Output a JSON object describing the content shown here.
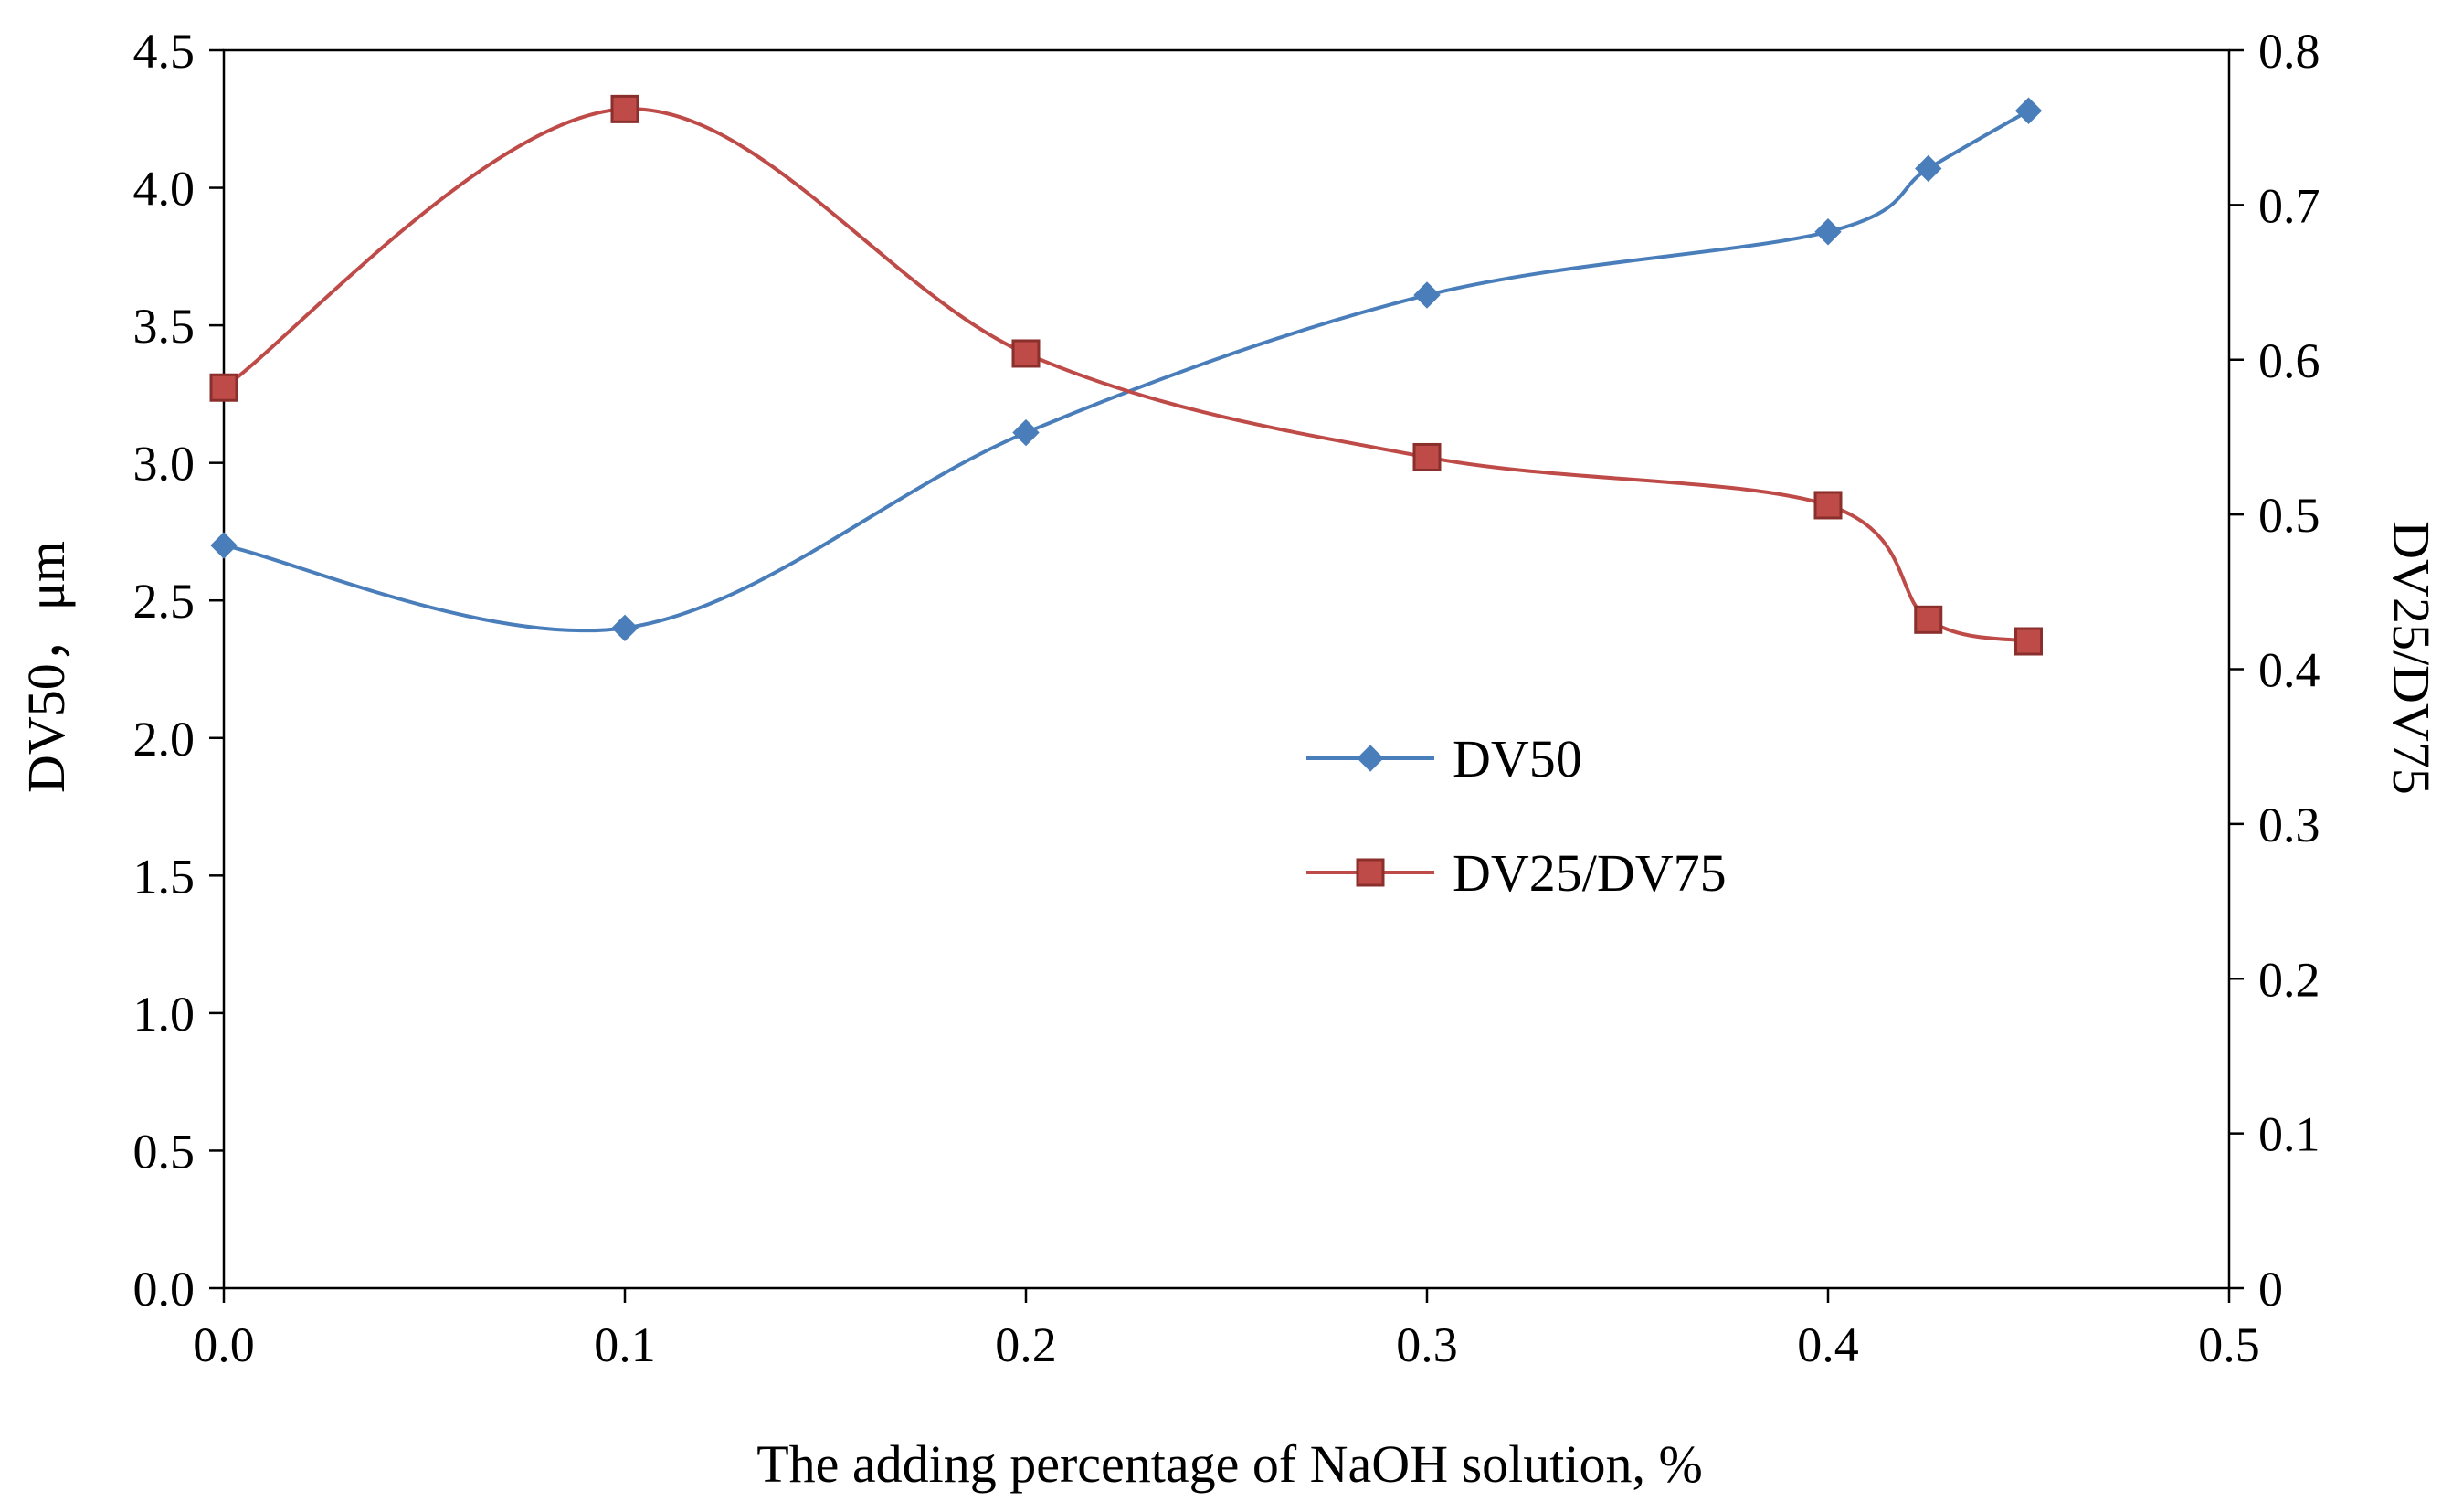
{
  "chart_data": {
    "type": "line",
    "xlabel": "The adding percentage of NaOH solution, %",
    "ylabel_left": "DV50，μm",
    "ylabel_right": "DV25/DV75",
    "xlim": [
      0,
      0.5
    ],
    "ylim_left": [
      0,
      4.5
    ],
    "ylim_right": [
      0,
      0.8
    ],
    "x_ticks": [
      "0.0",
      "0.1",
      "0.2",
      "0.3",
      "0.4",
      "0.5"
    ],
    "y_left_ticks": [
      "0.0",
      "0.5",
      "1.0",
      "1.5",
      "2.0",
      "2.5",
      "3.0",
      "3.5",
      "4.0",
      "4.5"
    ],
    "y_right_ticks": [
      "0",
      "0.1",
      "0.2",
      "0.3",
      "0.4",
      "0.5",
      "0.6",
      "0.7",
      "0.8"
    ],
    "grid": false,
    "legend_position": "center-right",
    "series": [
      {
        "name": "DV50",
        "axis": "left",
        "color": "#4a7ebb",
        "marker": "diamond",
        "smooth": true,
        "x": [
          0,
          0.1,
          0.2,
          0.3,
          0.4,
          0.425,
          0.45
        ],
        "values": [
          2.7,
          2.4,
          3.11,
          3.61,
          3.84,
          4.07,
          4.28
        ]
      },
      {
        "name": "DV25/DV75",
        "axis": "right",
        "color": "#be4b48",
        "marker": "square",
        "smooth": true,
        "x": [
          0,
          0.1,
          0.2,
          0.3,
          0.4,
          0.425,
          0.45
        ],
        "values": [
          0.582,
          0.762,
          0.604,
          0.537,
          0.506,
          0.432,
          0.418
        ]
      }
    ]
  }
}
